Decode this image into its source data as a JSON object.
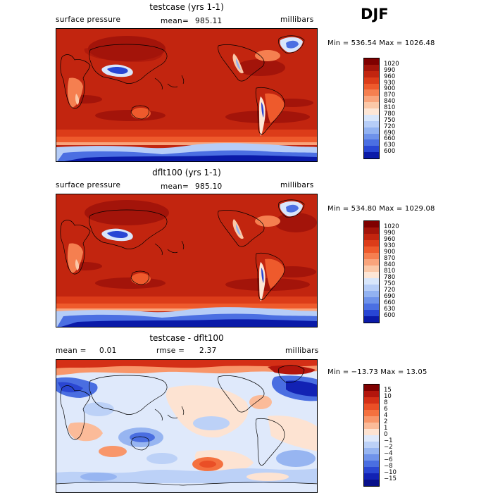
{
  "season": "DJF",
  "panels": [
    {
      "title": "testcase (yrs 1-1)",
      "left_label": "surface pressure",
      "stat_label": "mean=",
      "stat_value": "985.11",
      "units": "millibars",
      "minmax": "Min = 536.54 Max = 1026.48",
      "colorbar": {
        "labels": [
          "1020",
          "990",
          "960",
          "930",
          "900",
          "870",
          "840",
          "810",
          "780",
          "750",
          "720",
          "690",
          "660",
          "630",
          "600"
        ],
        "colors": [
          "#7f0000",
          "#a3140a",
          "#c2250f",
          "#dc3c19",
          "#ee5a2c",
          "#f57f50",
          "#f9a47c",
          "#fbc8a8",
          "#fde6d6",
          "#d8e6fb",
          "#b6cdf7",
          "#92b2f1",
          "#6e92ea",
          "#4b6fe2",
          "#2846d4",
          "#0a1aa8"
        ]
      }
    },
    {
      "title": "dflt100 (yrs 1-1)",
      "left_label": "surface pressure",
      "stat_label": "mean=",
      "stat_value": "985.10",
      "units": "millibars",
      "minmax": "Min = 534.80 Max = 1029.08",
      "colorbar": {
        "labels": [
          "1020",
          "990",
          "960",
          "930",
          "900",
          "870",
          "840",
          "810",
          "780",
          "750",
          "720",
          "690",
          "660",
          "630",
          "600"
        ],
        "colors": [
          "#7f0000",
          "#a3140a",
          "#c2250f",
          "#dc3c19",
          "#ee5a2c",
          "#f57f50",
          "#f9a47c",
          "#fbc8a8",
          "#fde6d6",
          "#d8e6fb",
          "#b6cdf7",
          "#92b2f1",
          "#6e92ea",
          "#4b6fe2",
          "#2846d4",
          "#0a1aa8"
        ]
      }
    },
    {
      "title": "testcase - dflt100",
      "left_label": "mean =",
      "left_value": "0.01",
      "stat_label": "rmse =",
      "stat_value": "2.37",
      "units": "millibars",
      "minmax": "Min = −13.73 Max =   13.05",
      "colorbar": {
        "labels": [
          "15",
          "10",
          "8",
          "6",
          "4",
          "2",
          "1",
          "0",
          "−1",
          "−2",
          "−4",
          "−6",
          "−8",
          "−10",
          "−15"
        ],
        "colors": [
          "#7f0000",
          "#b3150c",
          "#d42f16",
          "#ea4f26",
          "#f4713f",
          "#f8966a",
          "#fbbb99",
          "#fde3d2",
          "#dfe9fb",
          "#bcd1f7",
          "#97b5f1",
          "#7093ea",
          "#4a6ee1",
          "#2a46d2",
          "#1222b4",
          "#08108a"
        ]
      }
    }
  ],
  "chart_data": [
    {
      "type": "heatmap",
      "title": "testcase (yrs 1-1)",
      "variable": "surface pressure",
      "units": "millibars",
      "mean": 985.11,
      "min": 536.54,
      "max": 1026.48,
      "colorbar_levels": [
        600,
        630,
        660,
        690,
        720,
        750,
        780,
        810,
        840,
        870,
        900,
        930,
        960,
        990,
        1020
      ]
    },
    {
      "type": "heatmap",
      "title": "dflt100 (yrs 1-1)",
      "variable": "surface pressure",
      "units": "millibars",
      "mean": 985.1,
      "min": 534.8,
      "max": 1029.08,
      "colorbar_levels": [
        600,
        630,
        660,
        690,
        720,
        750,
        780,
        810,
        840,
        870,
        900,
        930,
        960,
        990,
        1020
      ]
    },
    {
      "type": "heatmap",
      "title": "testcase - dflt100",
      "units": "millibars",
      "mean": 0.01,
      "rmse": 2.37,
      "min": -13.73,
      "max": 13.05,
      "colorbar_levels": [
        -15,
        -10,
        -8,
        -6,
        -4,
        -2,
        -1,
        0,
        1,
        2,
        4,
        6,
        8,
        10,
        15
      ]
    }
  ]
}
